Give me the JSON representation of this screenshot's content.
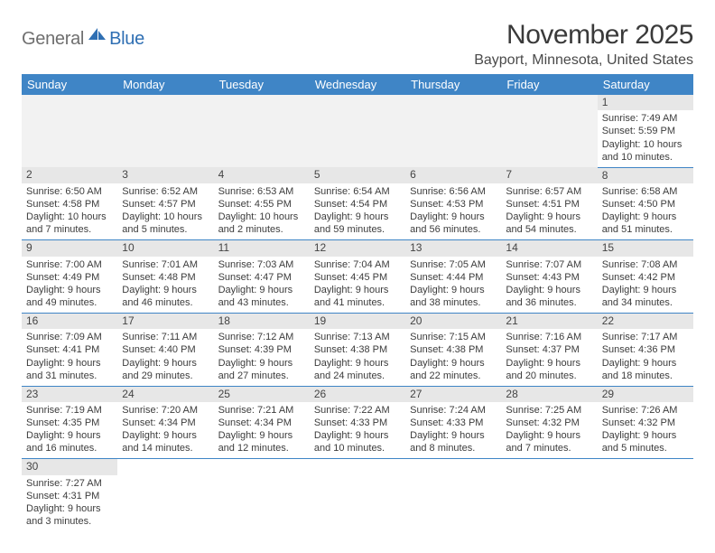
{
  "logo": {
    "gray": "General",
    "blue": "Blue"
  },
  "title": "November 2025",
  "location": "Bayport, Minnesota, United States",
  "colors": {
    "header_bg": "#3f85c6",
    "header_fg": "#ffffff",
    "daynum_bg": "#e7e7e7",
    "row_border": "#3f85c6",
    "logo_gray": "#6f6f6f",
    "logo_blue": "#2f6fb3"
  },
  "weekdays": [
    "Sunday",
    "Monday",
    "Tuesday",
    "Wednesday",
    "Thursday",
    "Friday",
    "Saturday"
  ],
  "weeks": [
    [
      null,
      null,
      null,
      null,
      null,
      null,
      {
        "n": "1",
        "sr": "Sunrise: 7:49 AM",
        "ss": "Sunset: 5:59 PM",
        "dl": "Daylight: 10 hours and 10 minutes."
      }
    ],
    [
      {
        "n": "2",
        "sr": "Sunrise: 6:50 AM",
        "ss": "Sunset: 4:58 PM",
        "dl": "Daylight: 10 hours and 7 minutes."
      },
      {
        "n": "3",
        "sr": "Sunrise: 6:52 AM",
        "ss": "Sunset: 4:57 PM",
        "dl": "Daylight: 10 hours and 5 minutes."
      },
      {
        "n": "4",
        "sr": "Sunrise: 6:53 AM",
        "ss": "Sunset: 4:55 PM",
        "dl": "Daylight: 10 hours and 2 minutes."
      },
      {
        "n": "5",
        "sr": "Sunrise: 6:54 AM",
        "ss": "Sunset: 4:54 PM",
        "dl": "Daylight: 9 hours and 59 minutes."
      },
      {
        "n": "6",
        "sr": "Sunrise: 6:56 AM",
        "ss": "Sunset: 4:53 PM",
        "dl": "Daylight: 9 hours and 56 minutes."
      },
      {
        "n": "7",
        "sr": "Sunrise: 6:57 AM",
        "ss": "Sunset: 4:51 PM",
        "dl": "Daylight: 9 hours and 54 minutes."
      },
      {
        "n": "8",
        "sr": "Sunrise: 6:58 AM",
        "ss": "Sunset: 4:50 PM",
        "dl": "Daylight: 9 hours and 51 minutes."
      }
    ],
    [
      {
        "n": "9",
        "sr": "Sunrise: 7:00 AM",
        "ss": "Sunset: 4:49 PM",
        "dl": "Daylight: 9 hours and 49 minutes."
      },
      {
        "n": "10",
        "sr": "Sunrise: 7:01 AM",
        "ss": "Sunset: 4:48 PM",
        "dl": "Daylight: 9 hours and 46 minutes."
      },
      {
        "n": "11",
        "sr": "Sunrise: 7:03 AM",
        "ss": "Sunset: 4:47 PM",
        "dl": "Daylight: 9 hours and 43 minutes."
      },
      {
        "n": "12",
        "sr": "Sunrise: 7:04 AM",
        "ss": "Sunset: 4:45 PM",
        "dl": "Daylight: 9 hours and 41 minutes."
      },
      {
        "n": "13",
        "sr": "Sunrise: 7:05 AM",
        "ss": "Sunset: 4:44 PM",
        "dl": "Daylight: 9 hours and 38 minutes."
      },
      {
        "n": "14",
        "sr": "Sunrise: 7:07 AM",
        "ss": "Sunset: 4:43 PM",
        "dl": "Daylight: 9 hours and 36 minutes."
      },
      {
        "n": "15",
        "sr": "Sunrise: 7:08 AM",
        "ss": "Sunset: 4:42 PM",
        "dl": "Daylight: 9 hours and 34 minutes."
      }
    ],
    [
      {
        "n": "16",
        "sr": "Sunrise: 7:09 AM",
        "ss": "Sunset: 4:41 PM",
        "dl": "Daylight: 9 hours and 31 minutes."
      },
      {
        "n": "17",
        "sr": "Sunrise: 7:11 AM",
        "ss": "Sunset: 4:40 PM",
        "dl": "Daylight: 9 hours and 29 minutes."
      },
      {
        "n": "18",
        "sr": "Sunrise: 7:12 AM",
        "ss": "Sunset: 4:39 PM",
        "dl": "Daylight: 9 hours and 27 minutes."
      },
      {
        "n": "19",
        "sr": "Sunrise: 7:13 AM",
        "ss": "Sunset: 4:38 PM",
        "dl": "Daylight: 9 hours and 24 minutes."
      },
      {
        "n": "20",
        "sr": "Sunrise: 7:15 AM",
        "ss": "Sunset: 4:38 PM",
        "dl": "Daylight: 9 hours and 22 minutes."
      },
      {
        "n": "21",
        "sr": "Sunrise: 7:16 AM",
        "ss": "Sunset: 4:37 PM",
        "dl": "Daylight: 9 hours and 20 minutes."
      },
      {
        "n": "22",
        "sr": "Sunrise: 7:17 AM",
        "ss": "Sunset: 4:36 PM",
        "dl": "Daylight: 9 hours and 18 minutes."
      }
    ],
    [
      {
        "n": "23",
        "sr": "Sunrise: 7:19 AM",
        "ss": "Sunset: 4:35 PM",
        "dl": "Daylight: 9 hours and 16 minutes."
      },
      {
        "n": "24",
        "sr": "Sunrise: 7:20 AM",
        "ss": "Sunset: 4:34 PM",
        "dl": "Daylight: 9 hours and 14 minutes."
      },
      {
        "n": "25",
        "sr": "Sunrise: 7:21 AM",
        "ss": "Sunset: 4:34 PM",
        "dl": "Daylight: 9 hours and 12 minutes."
      },
      {
        "n": "26",
        "sr": "Sunrise: 7:22 AM",
        "ss": "Sunset: 4:33 PM",
        "dl": "Daylight: 9 hours and 10 minutes."
      },
      {
        "n": "27",
        "sr": "Sunrise: 7:24 AM",
        "ss": "Sunset: 4:33 PM",
        "dl": "Daylight: 9 hours and 8 minutes."
      },
      {
        "n": "28",
        "sr": "Sunrise: 7:25 AM",
        "ss": "Sunset: 4:32 PM",
        "dl": "Daylight: 9 hours and 7 minutes."
      },
      {
        "n": "29",
        "sr": "Sunrise: 7:26 AM",
        "ss": "Sunset: 4:32 PM",
        "dl": "Daylight: 9 hours and 5 minutes."
      }
    ],
    [
      {
        "n": "30",
        "sr": "Sunrise: 7:27 AM",
        "ss": "Sunset: 4:31 PM",
        "dl": "Daylight: 9 hours and 3 minutes."
      },
      null,
      null,
      null,
      null,
      null,
      null
    ]
  ]
}
